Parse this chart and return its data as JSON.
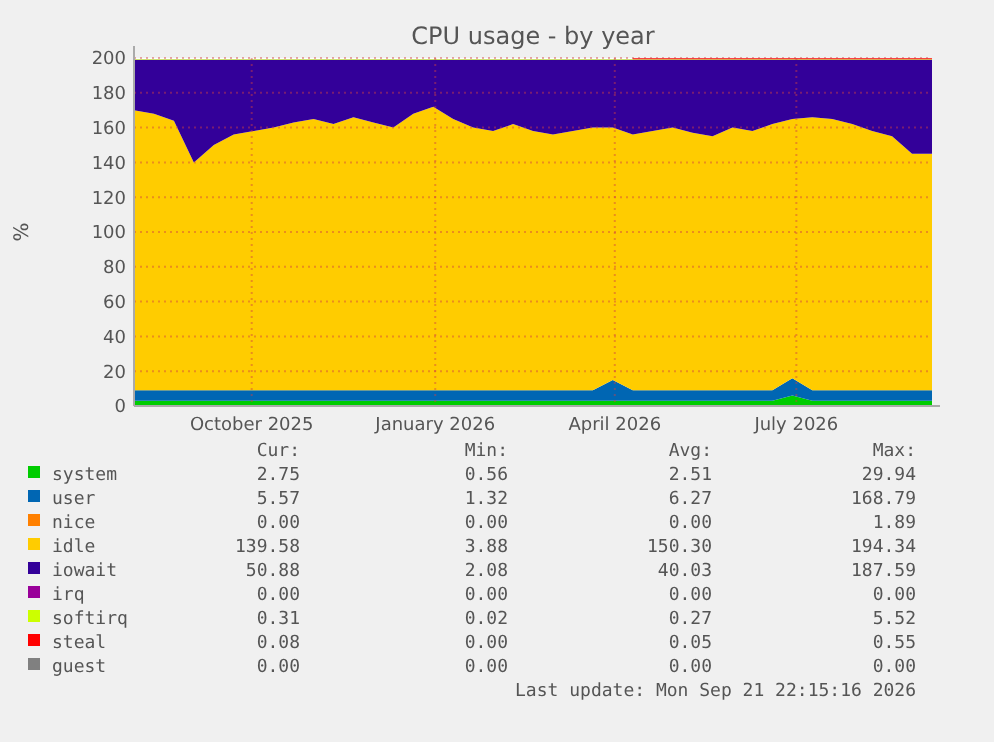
{
  "chart_data": {
    "type": "area",
    "stacked": true,
    "title": "CPU usage - by year",
    "ylabel": "%",
    "x": [
      "2025-08-03",
      "2025-08-13",
      "2025-08-23",
      "2025-09-02",
      "2025-09-12",
      "2025-09-22",
      "2025-10-02",
      "2025-10-12",
      "2025-10-22",
      "2025-11-01",
      "2025-11-11",
      "2025-11-21",
      "2025-12-01",
      "2025-12-11",
      "2025-12-21",
      "2025-12-31",
      "2026-01-10",
      "2026-01-20",
      "2026-01-30",
      "2026-02-09",
      "2026-02-19",
      "2026-03-01",
      "2026-03-11",
      "2026-03-21",
      "2026-03-31",
      "2026-04-10",
      "2026-04-20",
      "2026-04-30",
      "2026-05-10",
      "2026-05-20",
      "2026-05-30",
      "2026-06-09",
      "2026-06-19",
      "2026-06-29",
      "2026-07-09",
      "2026-07-19",
      "2026-07-29",
      "2026-08-08",
      "2026-08-18",
      "2026-08-28",
      "2026-09-07"
    ],
    "xlim": [
      "2025-08-03",
      "2026-09-07"
    ],
    "xticks": [
      {
        "value": "2025-10-01",
        "label": "October 2025"
      },
      {
        "value": "2026-01-01",
        "label": "January 2026"
      },
      {
        "value": "2026-04-01",
        "label": "April 2026"
      },
      {
        "value": "2026-07-01",
        "label": "July 2026"
      }
    ],
    "ylim": [
      0,
      200
    ],
    "yticks": [
      0,
      20,
      40,
      60,
      80,
      100,
      120,
      140,
      160,
      180,
      200
    ],
    "grid": true,
    "legend": "bottom",
    "series": [
      {
        "name": "system",
        "color": "#00cc00",
        "values": [
          3,
          3,
          3,
          3,
          3,
          3,
          3,
          3,
          3,
          3,
          3,
          3,
          3,
          3,
          3,
          3,
          3,
          3,
          3,
          3,
          3,
          3,
          3,
          3,
          3,
          3,
          3,
          3,
          3,
          3,
          3,
          3,
          3,
          6,
          3,
          3,
          3,
          3,
          3,
          3,
          3
        ]
      },
      {
        "name": "user",
        "color": "#0066b3",
        "values": [
          6,
          6,
          6,
          6,
          6,
          6,
          6,
          6,
          6,
          6,
          6,
          6,
          6,
          6,
          6,
          6,
          6,
          6,
          6,
          6,
          6,
          6,
          6,
          6,
          12,
          6,
          6,
          6,
          6,
          6,
          6,
          6,
          6,
          10,
          6,
          6,
          6,
          6,
          6,
          6,
          6
        ]
      },
      {
        "name": "nice",
        "color": "#ff8000",
        "values": [
          null,
          null,
          null,
          null,
          null,
          null,
          null,
          null,
          null,
          null,
          null,
          null,
          null,
          null,
          null,
          null,
          null,
          null,
          null,
          null,
          null,
          null,
          null,
          null,
          null,
          null,
          null,
          null,
          null,
          null,
          null,
          null,
          null,
          null,
          null,
          null,
          null,
          null,
          null,
          null,
          null
        ]
      },
      {
        "name": "idle",
        "color": "#ffcc00",
        "values": [
          161,
          159,
          155,
          131,
          141,
          147,
          149,
          151,
          154,
          156,
          153,
          157,
          154,
          151,
          159,
          163,
          156,
          151,
          149,
          153,
          149,
          147,
          149,
          151,
          145,
          147,
          149,
          151,
          148,
          146,
          151,
          149,
          153,
          149,
          157,
          156,
          153,
          149,
          146,
          136,
          136
        ]
      },
      {
        "name": "iowait",
        "color": "#330099",
        "values": [
          29,
          31,
          35,
          59,
          49,
          43,
          41,
          39,
          36,
          34,
          37,
          33,
          36,
          39,
          31,
          27,
          34,
          39,
          41,
          37,
          41,
          43,
          41,
          39,
          39,
          43,
          41,
          39,
          42,
          44,
          39,
          41,
          37,
          34,
          33,
          34,
          37,
          41,
          44,
          54,
          54
        ]
      },
      {
        "name": "irq",
        "color": "#990099",
        "values": [
          null,
          null,
          null,
          null,
          null,
          null,
          null,
          null,
          null,
          null,
          null,
          null,
          null,
          null,
          null,
          null,
          null,
          null,
          null,
          null,
          null,
          null,
          null,
          null,
          null,
          null,
          null,
          null,
          null,
          null,
          null,
          null,
          null,
          null,
          null,
          null,
          null,
          null,
          null,
          null,
          null
        ]
      },
      {
        "name": "softirq",
        "color": "#ccff00",
        "values": [
          0.3,
          0.3,
          0.3,
          0.3,
          0.3,
          0.3,
          0.3,
          0.3,
          0.3,
          0.3,
          0.3,
          0.3,
          0.3,
          0.3,
          0.3,
          0.3,
          0.3,
          0.3,
          0.3,
          0.3,
          0.3,
          0.3,
          0.3,
          0.3,
          0.3,
          0.3,
          0.3,
          0.3,
          0.3,
          0.3,
          0.3,
          0.3,
          0.3,
          0.3,
          0.3,
          0.3,
          0.3,
          0.3,
          0.3,
          0.3,
          0.3
        ]
      },
      {
        "name": "steal",
        "color": "#ff0000",
        "values": [
          null,
          null,
          null,
          null,
          null,
          null,
          null,
          null,
          null,
          null,
          null,
          null,
          null,
          null,
          null,
          null,
          null,
          null,
          null,
          null,
          null,
          null,
          null,
          null,
          null,
          0.5,
          0.5,
          0.5,
          0.5,
          0.5,
          0.5,
          0.5,
          0.5,
          0.5,
          0.5,
          0.5,
          0.5,
          0.5,
          0.5,
          0.5,
          0.5
        ]
      },
      {
        "name": "guest",
        "color": "#808080",
        "values": [
          null,
          null,
          null,
          null,
          null,
          null,
          null,
          null,
          null,
          null,
          null,
          null,
          null,
          null,
          null,
          null,
          null,
          null,
          null,
          null,
          null,
          null,
          null,
          null,
          null,
          null,
          null,
          null,
          null,
          null,
          null,
          null,
          null,
          null,
          null,
          null,
          null,
          null,
          null,
          null,
          null
        ]
      }
    ],
    "annotations": [
      "Cur:",
      "Min:",
      "Avg:",
      "Max:",
      "2.75",
      "0.56",
      "2.51",
      "29.94",
      "5.57",
      "1.32",
      "6.27",
      "168.79",
      "0.00",
      "0.00",
      "0.00",
      "1.89",
      "139.58",
      "3.88",
      "150.30",
      "194.34",
      "50.88",
      "2.08",
      "40.03",
      "187.59",
      "0.00",
      "0.00",
      "0.00",
      "0.00",
      "0.31",
      "0.02",
      "0.27",
      "5.52",
      "0.08",
      "0.00",
      "0.05",
      "0.55",
      "0.00",
      "0.00",
      "0.00",
      "0.00",
      "Last update: Mon Sep 21 22:15:16 2026"
    ]
  }
}
